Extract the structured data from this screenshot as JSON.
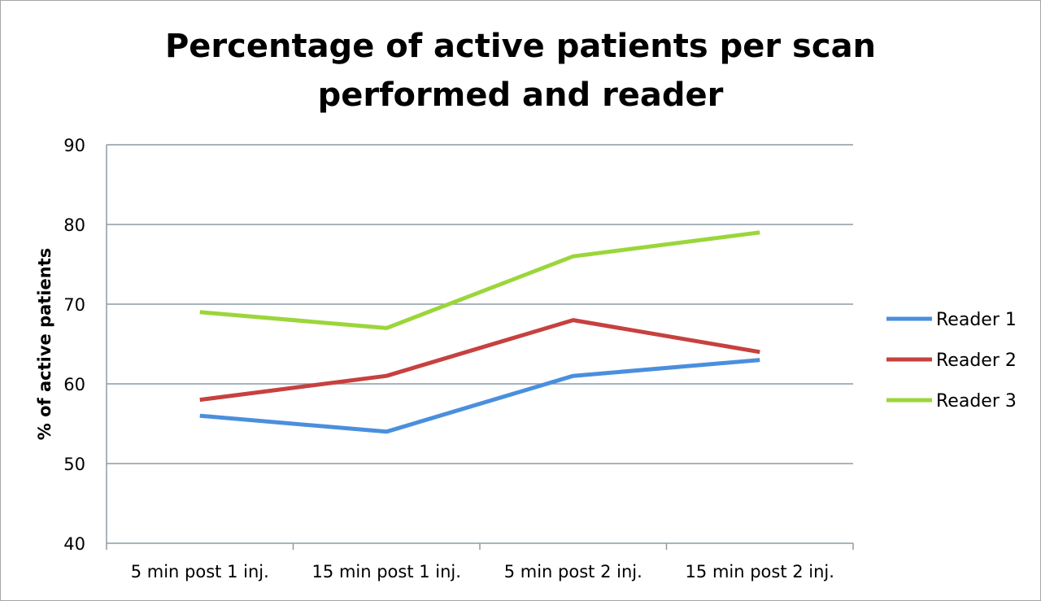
{
  "chart_data": {
    "type": "line",
    "title_lines": [
      "Percentage of active patients per scan",
      "performed and reader"
    ],
    "xlabel": "",
    "ylabel": "% of active patients",
    "categories": [
      "5 min post 1 inj.",
      "15 min post 1 inj.",
      "5 min post 2 inj.",
      "15 min post 2 inj."
    ],
    "ylim": [
      40,
      90
    ],
    "yticks": [
      "40",
      "50",
      "60",
      "70",
      "80",
      "90"
    ],
    "grid": true,
    "legend_position": "right",
    "series": [
      {
        "name": "Reader 1",
        "color": "#4a8fdd",
        "values": [
          56,
          54,
          61,
          63
        ]
      },
      {
        "name": "Reader 2",
        "color": "#c6413f",
        "values": [
          58,
          61,
          68,
          64
        ]
      },
      {
        "name": "Reader 3",
        "color": "#9bd63a",
        "values": [
          69,
          67,
          76,
          79
        ]
      }
    ]
  }
}
